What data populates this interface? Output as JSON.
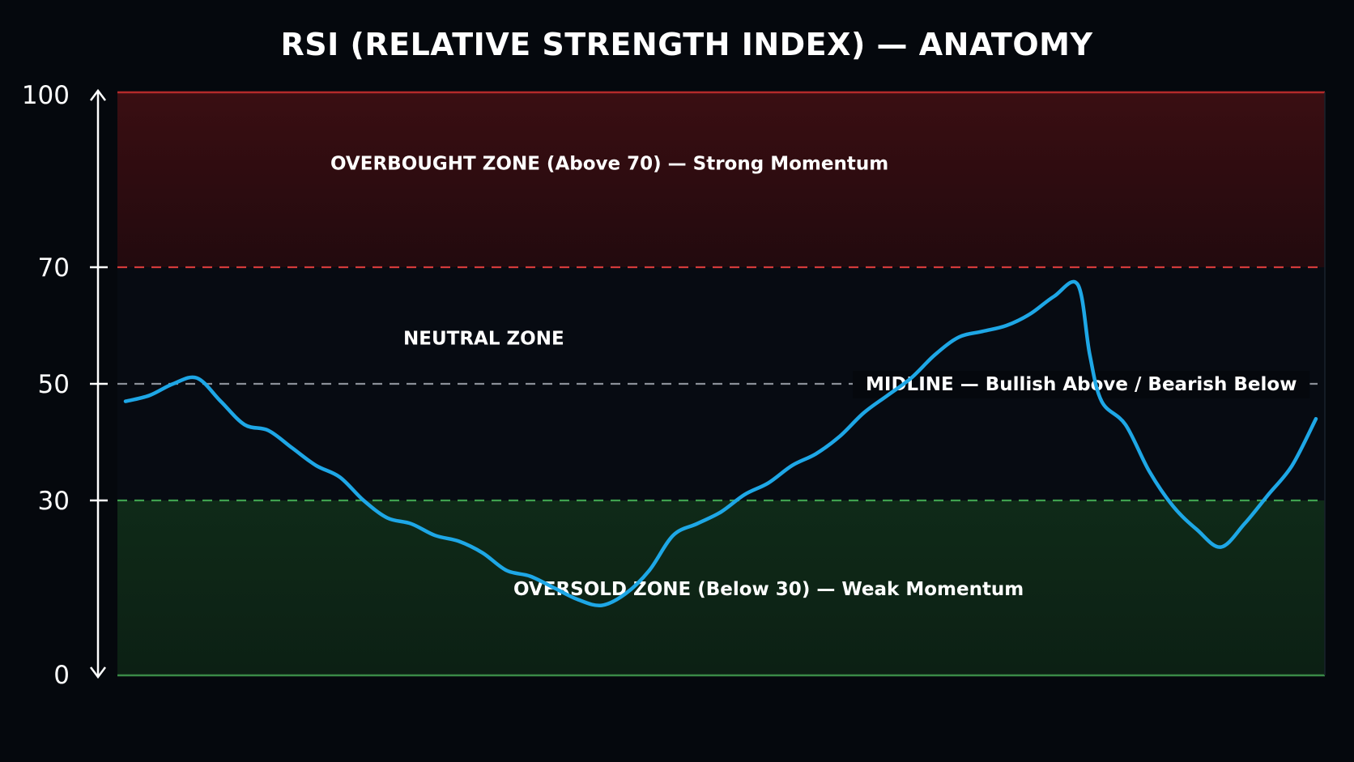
{
  "chart_data": {
    "type": "line",
    "title": "RSI (RELATIVE STRENGTH INDEX) — ANATOMY",
    "ylim": [
      0,
      100
    ],
    "yticks": [
      0,
      30,
      50,
      70,
      100
    ],
    "grid": false,
    "legend": "none",
    "zones": [
      {
        "name": "overbought",
        "from": 70,
        "to": 100,
        "label": "OVERBOUGHT ZONE (Above 70) — Strong Momentum",
        "color": "#9e1c1c"
      },
      {
        "name": "neutral",
        "from": 30,
        "to": 70,
        "label": "NEUTRAL ZONE",
        "color": "#0a1018"
      },
      {
        "name": "oversold",
        "from": 0,
        "to": 30,
        "label": "OVERSOLD ZONE (Below 30) — Weak Momentum",
        "color": "#1f5a2b"
      }
    ],
    "reference_lines": [
      {
        "value": 70,
        "color": "#d23a3a",
        "label": ""
      },
      {
        "value": 50,
        "color": "#8a8f98",
        "label": "MIDLINE — Bullish Above / Bearish Below"
      },
      {
        "value": 30,
        "color": "#3fa14f",
        "label": ""
      }
    ],
    "series": [
      {
        "color": "#1ea7e6",
        "x": [
          0,
          2,
          4,
          6,
          8,
          10,
          12,
          14,
          16,
          18,
          20,
          22,
          24,
          26,
          28,
          30,
          32,
          34,
          36,
          38,
          40,
          42,
          44,
          46,
          48,
          50,
          52,
          54,
          56,
          58,
          60,
          62,
          64,
          66,
          68,
          70,
          72,
          74,
          76,
          78,
          80,
          81,
          82,
          84,
          86,
          88,
          90,
          92,
          94,
          96,
          98,
          100
        ],
        "values": [
          47,
          48,
          50,
          51,
          47,
          43,
          42,
          39,
          36,
          34,
          30,
          27,
          26,
          24,
          23,
          21,
          18,
          17,
          15,
          13,
          12,
          14,
          18,
          24,
          26,
          28,
          31,
          33,
          36,
          38,
          41,
          45,
          48,
          51,
          55,
          58,
          59,
          60,
          62,
          65,
          67,
          55,
          47,
          43,
          35,
          29,
          25,
          22,
          26,
          31,
          36,
          44
        ]
      }
    ]
  }
}
